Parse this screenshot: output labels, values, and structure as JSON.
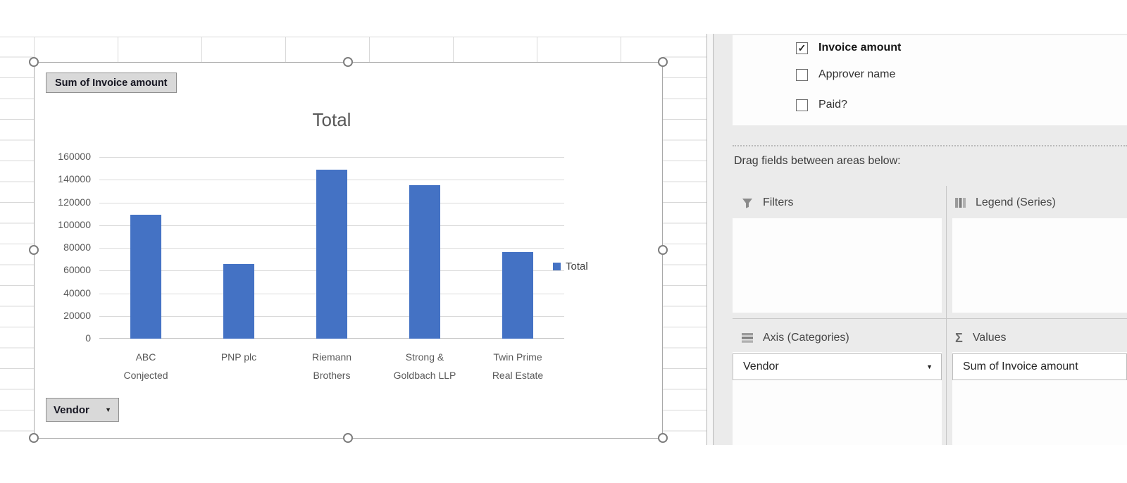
{
  "chart": {
    "value_field_button": "Sum of Invoice amount",
    "axis_field_button": "Vendor",
    "legend_label": "Total"
  },
  "chart_data": {
    "type": "bar",
    "title": "Total",
    "categories": [
      "ABC\nConjected",
      "PNP plc",
      "Riemann\nBrothers",
      "Strong &\nGoldbach LLP",
      "Twin Prime\nReal Estate"
    ],
    "values": [
      109000,
      66000,
      149000,
      135000,
      76000
    ],
    "series": [
      {
        "name": "Total",
        "values": [
          109000,
          66000,
          149000,
          135000,
          76000
        ]
      }
    ],
    "xlabel": "Vendor",
    "ylabel": "Sum of Invoice amount",
    "ylim": [
      0,
      160000
    ],
    "ytick_step": 20000,
    "bar_color": "#4472C4",
    "grid": true,
    "legend_position": "right"
  },
  "pane": {
    "field_list": [
      {
        "label": "Invoice amount",
        "check_glyph": "✓"
      },
      {
        "label": "Approver name",
        "check_glyph": ""
      },
      {
        "label": "Paid?",
        "check_glyph": ""
      }
    ],
    "drag_hint": "Drag fields between areas below:",
    "areas": {
      "filters_label": "Filters",
      "legend_label": "Legend (Series)",
      "axis_label": "Axis (Categories)",
      "values_label": "Values",
      "sigma_glyph": "Σ",
      "axis_field": "Vendor",
      "values_field": "Sum of Invoice amount"
    }
  }
}
